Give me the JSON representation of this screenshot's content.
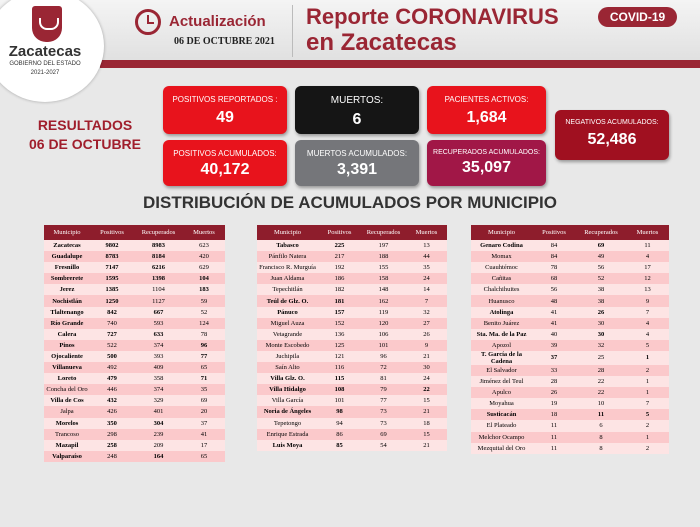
{
  "logo": {
    "name": "Zacatecas",
    "line1": "GOBIERNO DEL ESTADO",
    "line2": "2021-2027"
  },
  "header": {
    "update_label": "Actualización",
    "date": "06 DE OCTUBRE 2021",
    "title1": "Reporte CORONAVIRUS",
    "title2": "en Zacatecas",
    "badge": "COVID-19"
  },
  "results": {
    "line1": "RESULTADOS",
    "line2": "06 DE OCTUBRE"
  },
  "colors": {
    "brand": "#9a2634",
    "red": "#e8131c",
    "black": "#151515",
    "gray": "#75767a",
    "magenta": "#a11747"
  },
  "stats": {
    "positivos_reportados": {
      "label": "POSITIVOS REPORTADOS :",
      "value": "49"
    },
    "muertos": {
      "label": "MUERTOS:",
      "value": "6"
    },
    "pacientes_activos": {
      "label": "PACIENTES ACTIVOS:",
      "value": "1,684"
    },
    "negativos_acumulados": {
      "label": "NEGATIVOS ACUMULADOS:",
      "value": "52,486"
    },
    "positivos_acumulados": {
      "label": "POSITIVOS ACUMULADOS:",
      "value": "40,172"
    },
    "muertos_acumulados": {
      "label": "MUERTOS ACUMULADOS:",
      "value": "3,391"
    },
    "recuperados_acumulados": {
      "label": "RECUPERADOS ACUMULADOS:",
      "value": "35,097"
    }
  },
  "section_title": "DISTRIBUCIÓN DE ACUMULADOS POR MUNICIPIO",
  "headers": [
    "Municipio",
    "Positivos",
    "Recuperados",
    "Muertos"
  ],
  "table1": [
    [
      "Zacatecas",
      "9802",
      "8983",
      "623"
    ],
    [
      "Guadalupe",
      "8783",
      "8184",
      "420"
    ],
    [
      "Fresnillo",
      "7147",
      "6216",
      "629"
    ],
    [
      "Sombrerete",
      "1595",
      "1398",
      "104"
    ],
    [
      "Jerez",
      "1385",
      "1104",
      "183"
    ],
    [
      "Nochistlán",
      "1250",
      "1127",
      "59"
    ],
    [
      "Tlaltenango",
      "842",
      "667",
      "52"
    ],
    [
      "Río Grande",
      "740",
      "593",
      "124"
    ],
    [
      "Calera",
      "727",
      "633",
      "78"
    ],
    [
      "Pinos",
      "522",
      "374",
      "96"
    ],
    [
      "Ojocaliente",
      "500",
      "393",
      "77"
    ],
    [
      "Villanueva",
      "492",
      "409",
      "65"
    ],
    [
      "Loreto",
      "479",
      "358",
      "71"
    ],
    [
      "Concha del Oro",
      "446",
      "374",
      "35"
    ],
    [
      "Villa de Cos",
      "432",
      "329",
      "69"
    ],
    [
      "Jalpa",
      "426",
      "401",
      "20"
    ],
    [
      "Morelos",
      "350",
      "304",
      "37"
    ],
    [
      "Trancoso",
      "298",
      "239",
      "41"
    ],
    [
      "Mazapil",
      "258",
      "209",
      "17"
    ],
    [
      "Valparaíso",
      "248",
      "164",
      "65"
    ]
  ],
  "table2": [
    [
      "Tabasco",
      "225",
      "197",
      "13"
    ],
    [
      "Pánfilo Natera",
      "217",
      "188",
      "44"
    ],
    [
      "Francisco R. Murguía",
      "192",
      "155",
      "35"
    ],
    [
      "Juan Aldama",
      "186",
      "158",
      "24"
    ],
    [
      "Tepechitlán",
      "182",
      "148",
      "14"
    ],
    [
      "Teúl de Glz. O.",
      "181",
      "162",
      "7"
    ],
    [
      "Pánuco",
      "157",
      "119",
      "32"
    ],
    [
      "Miguel Auza",
      "152",
      "120",
      "27"
    ],
    [
      "Vetagrande",
      "136",
      "106",
      "26"
    ],
    [
      "Monte Escobedo",
      "125",
      "101",
      "9"
    ],
    [
      "Juchipila",
      "121",
      "96",
      "21"
    ],
    [
      "Saín Alto",
      "116",
      "72",
      "30"
    ],
    [
      "Villa Glz. O.",
      "115",
      "81",
      "24"
    ],
    [
      "Villa Hidalgo",
      "108",
      "79",
      "22"
    ],
    [
      "Villa García",
      "101",
      "77",
      "15"
    ],
    [
      "Noria de Ángeles",
      "98",
      "73",
      "21"
    ],
    [
      "Tepetongo",
      "94",
      "73",
      "18"
    ],
    [
      "Enrique Estrada",
      "86",
      "69",
      "15"
    ],
    [
      "Luis Moya",
      "85",
      "54",
      "21"
    ]
  ],
  "table3": [
    [
      "Genaro Codina",
      "84",
      "69",
      "11"
    ],
    [
      "Momax",
      "84",
      "49",
      "4"
    ],
    [
      "Cuauhtémoc",
      "78",
      "56",
      "17"
    ],
    [
      "Cañitas",
      "68",
      "52",
      "12"
    ],
    [
      "Chalchihuites",
      "56",
      "38",
      "13"
    ],
    [
      "Huanusco",
      "48",
      "38",
      "9"
    ],
    [
      "Atolinga",
      "41",
      "26",
      "7"
    ],
    [
      "Benito Juárez",
      "41",
      "30",
      "4"
    ],
    [
      "Sta. Ma. de la Paz",
      "40",
      "30",
      "4"
    ],
    [
      "Apozol",
      "39",
      "32",
      "5"
    ],
    [
      "T. García de la Cadena",
      "37",
      "25",
      "1"
    ],
    [
      "El Salvador",
      "33",
      "28",
      "2"
    ],
    [
      "Jiménez del Teul",
      "28",
      "22",
      "1"
    ],
    [
      "Apulco",
      "26",
      "22",
      "1"
    ],
    [
      "Moyahua",
      "19",
      "10",
      "7"
    ],
    [
      "Susticacán",
      "18",
      "11",
      "5"
    ],
    [
      "El Plateado",
      "11",
      "6",
      "2"
    ],
    [
      "Melchor Ocampo",
      "11",
      "8",
      "1"
    ],
    [
      "Mezquital del Oro",
      "11",
      "8",
      "2"
    ]
  ]
}
